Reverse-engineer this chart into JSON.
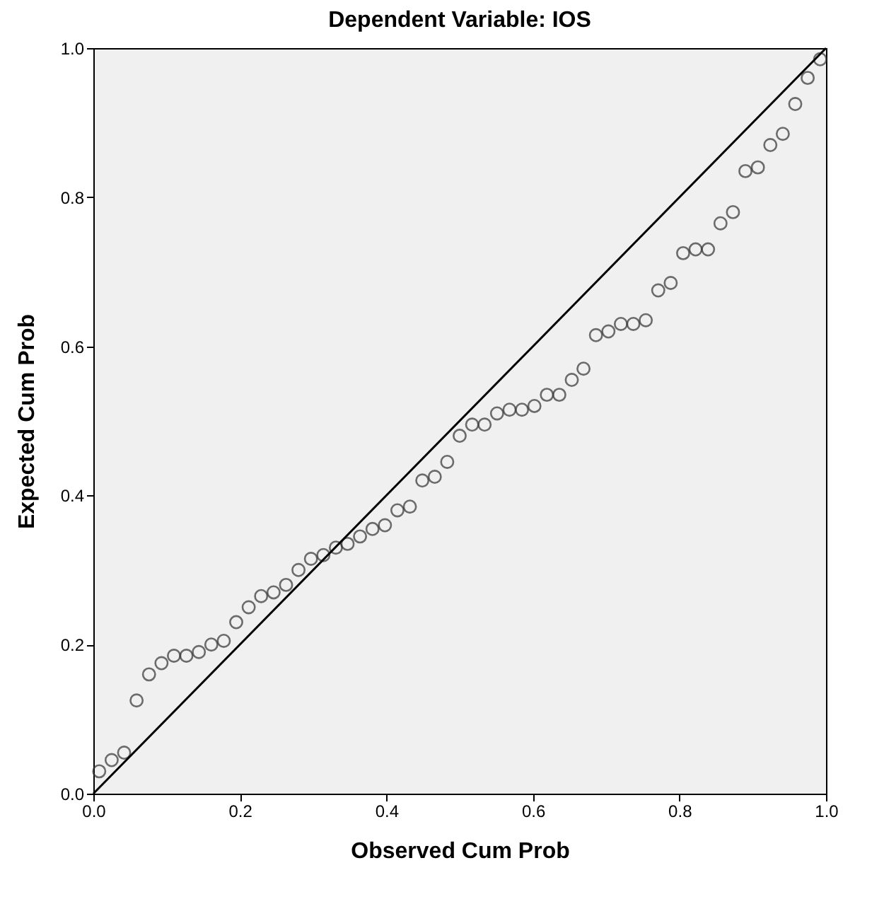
{
  "chart_data": {
    "type": "scatter",
    "title": "Dependent Variable: IOS",
    "xlabel": "Observed Cum Prob",
    "ylabel": "Expected Cum Prob",
    "xlim": [
      0,
      1
    ],
    "ylim": [
      0,
      1
    ],
    "xticks": [
      {
        "value": 0,
        "label": "0.0"
      },
      {
        "value": 0.2,
        "label": "0.2"
      },
      {
        "value": 0.4,
        "label": "0.4"
      },
      {
        "value": 0.6,
        "label": "0.6"
      },
      {
        "value": 0.8,
        "label": "0.8"
      },
      {
        "value": 1,
        "label": "1.0"
      }
    ],
    "yticks": [
      {
        "value": 0,
        "label": "0.0"
      },
      {
        "value": 0.2,
        "label": "0.2"
      },
      {
        "value": 0.4,
        "label": "0.4"
      },
      {
        "value": 0.6,
        "label": "0.6"
      },
      {
        "value": 0.8,
        "label": "0.8"
      },
      {
        "value": 1,
        "label": "1.0"
      }
    ],
    "grid": false,
    "series": [
      {
        "marker": "circle",
        "color": "#333333",
        "x": [
          0.008,
          0.025,
          0.042,
          0.059,
          0.076,
          0.093,
          0.11,
          0.127,
          0.144,
          0.161,
          0.178,
          0.195,
          0.212,
          0.229,
          0.246,
          0.263,
          0.28,
          0.297,
          0.314,
          0.331,
          0.347,
          0.364,
          0.381,
          0.398,
          0.415,
          0.432,
          0.449,
          0.466,
          0.483,
          0.5,
          0.517,
          0.534,
          0.551,
          0.568,
          0.585,
          0.602,
          0.619,
          0.636,
          0.653,
          0.669,
          0.686,
          0.703,
          0.72,
          0.737,
          0.754,
          0.771,
          0.788,
          0.805,
          0.822,
          0.839,
          0.856,
          0.873,
          0.89,
          0.907,
          0.924,
          0.941,
          0.958,
          0.975,
          0.992
        ],
        "values": [
          0.03,
          0.045,
          0.055,
          0.125,
          0.16,
          0.175,
          0.185,
          0.185,
          0.19,
          0.2,
          0.205,
          0.23,
          0.25,
          0.265,
          0.27,
          0.28,
          0.3,
          0.315,
          0.32,
          0.33,
          0.335,
          0.345,
          0.355,
          0.36,
          0.38,
          0.385,
          0.42,
          0.425,
          0.445,
          0.48,
          0.495,
          0.495,
          0.51,
          0.515,
          0.515,
          0.52,
          0.535,
          0.535,
          0.555,
          0.57,
          0.615,
          0.62,
          0.63,
          0.63,
          0.635,
          0.675,
          0.685,
          0.725,
          0.73,
          0.73,
          0.765,
          0.78,
          0.835,
          0.84,
          0.87,
          0.885,
          0.925,
          0.96,
          0.985
        ]
      },
      {
        "type": "line",
        "color": "#000000",
        "line_style": "solid",
        "x": [
          0,
          1
        ],
        "values": [
          0,
          1
        ]
      }
    ]
  }
}
